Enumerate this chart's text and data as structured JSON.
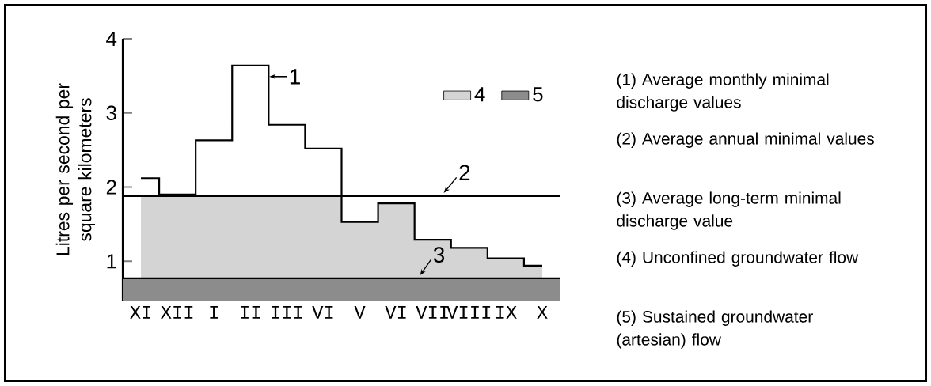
{
  "chart_data": {
    "type": "step",
    "ylabel": "Litres per second per square kilometers",
    "categories": [
      "XI",
      "XII",
      "I",
      "II",
      "III",
      "VI",
      "V",
      "VI",
      "VII",
      "VIII",
      "IX",
      "X"
    ],
    "series": [
      {
        "color": "#000000",
        "values": [
          2.12,
          1.9,
          2.63,
          3.64,
          2.84,
          2.52,
          1.53,
          1.78,
          1.29,
          1.18,
          1.04,
          0.94
        ]
      },
      {
        "type": "area",
        "name": "4",
        "color": "#d4d4d4",
        "values": [
          1.88,
          1.88,
          1.88,
          1.88,
          1.88,
          1.88,
          1.53,
          1.78,
          1.29,
          1.18,
          1.04,
          0.94
        ]
      }
    ],
    "ylim": [
      0.47,
      4
    ],
    "yticks": [
      1,
      2,
      3,
      4
    ],
    "bands": [
      {
        "axis": "y",
        "from": 0.47,
        "to": 0.77,
        "label": "5",
        "color": "#8c8c8c"
      }
    ],
    "ref_lines": [
      {
        "axis": "y",
        "value": 1.88
      },
      {
        "axis": "y",
        "value": 0.77
      }
    ],
    "legend": "top right",
    "annotations": [
      "1",
      "2",
      "3",
      "(1) Average monthly minimal discharge values",
      "(2) Average annual minimal values",
      "(3) Average long-term minimal discharge value",
      "(4) Unconfined groundwater flow",
      "(5) Sustained groundwater (artesian) flow"
    ]
  }
}
